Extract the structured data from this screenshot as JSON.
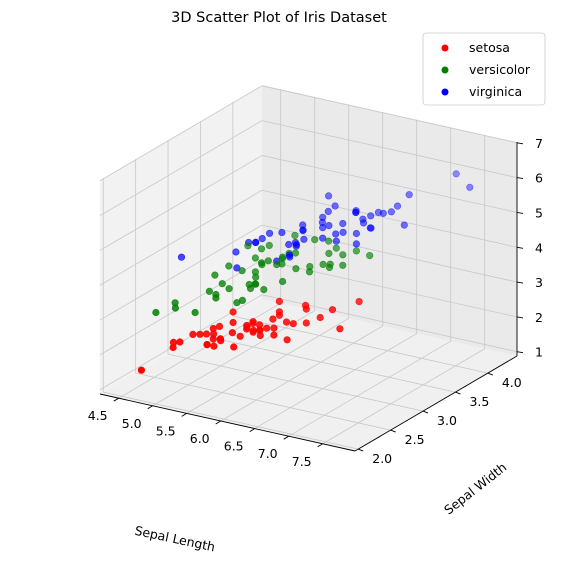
{
  "chart_data": {
    "type": "scatter3d",
    "title": "3D Scatter Plot of Iris Dataset",
    "xlabel": "Sepal Length",
    "ylabel": "Sepal Width",
    "zlabel": "",
    "xlim": [
      4.3,
      7.9
    ],
    "ylim": [
      2.0,
      4.4
    ],
    "zlim": [
      1.0,
      6.9
    ],
    "x_ticks": [
      "4.5",
      "5.0",
      "5.5",
      "6.0",
      "6.5",
      "7.0",
      "7.5",
      "8.0"
    ],
    "y_ticks": [
      "2.0",
      "2.5",
      "3.0",
      "3.5",
      "4.0",
      "4.5"
    ],
    "z_ticks": [
      "1",
      "2",
      "3",
      "4",
      "5",
      "6",
      "7"
    ],
    "grid": true,
    "legend": "top-right",
    "series": [
      {
        "name": "setosa",
        "color": "#ff0000",
        "points": [
          [
            5.1,
            3.5,
            1.4
          ],
          [
            4.9,
            3.0,
            1.4
          ],
          [
            4.7,
            3.2,
            1.3
          ],
          [
            4.6,
            3.1,
            1.5
          ],
          [
            5.0,
            3.6,
            1.4
          ],
          [
            5.4,
            3.9,
            1.7
          ],
          [
            4.6,
            3.4,
            1.4
          ],
          [
            5.0,
            3.4,
            1.5
          ],
          [
            4.4,
            2.9,
            1.4
          ],
          [
            4.9,
            3.1,
            1.5
          ],
          [
            5.4,
            3.7,
            1.5
          ],
          [
            4.8,
            3.4,
            1.6
          ],
          [
            4.8,
            3.0,
            1.4
          ],
          [
            4.3,
            3.0,
            1.1
          ],
          [
            5.8,
            4.0,
            1.2
          ],
          [
            5.7,
            4.4,
            1.5
          ],
          [
            5.4,
            3.9,
            1.3
          ],
          [
            5.1,
            3.5,
            1.4
          ],
          [
            5.7,
            3.8,
            1.7
          ],
          [
            5.1,
            3.8,
            1.5
          ],
          [
            5.4,
            3.4,
            1.7
          ],
          [
            5.1,
            3.7,
            1.5
          ],
          [
            4.6,
            3.6,
            1.0
          ],
          [
            5.1,
            3.3,
            1.7
          ],
          [
            4.8,
            3.4,
            1.9
          ],
          [
            5.0,
            3.0,
            1.6
          ],
          [
            5.0,
            3.4,
            1.6
          ],
          [
            5.2,
            3.5,
            1.5
          ],
          [
            5.2,
            3.4,
            1.4
          ],
          [
            4.7,
            3.2,
            1.6
          ],
          [
            4.8,
            3.1,
            1.6
          ],
          [
            5.4,
            3.4,
            1.5
          ],
          [
            5.2,
            4.1,
            1.5
          ],
          [
            5.5,
            4.2,
            1.4
          ],
          [
            4.9,
            3.1,
            1.5
          ],
          [
            5.0,
            3.2,
            1.2
          ],
          [
            5.5,
            3.5,
            1.3
          ],
          [
            4.9,
            3.6,
            1.4
          ],
          [
            4.4,
            3.0,
            1.3
          ],
          [
            5.1,
            3.4,
            1.5
          ],
          [
            5.0,
            3.5,
            1.3
          ],
          [
            4.5,
            2.3,
            1.3
          ],
          [
            4.4,
            3.2,
            1.3
          ],
          [
            5.0,
            3.5,
            1.6
          ],
          [
            5.1,
            3.8,
            1.9
          ],
          [
            4.8,
            3.0,
            1.4
          ],
          [
            5.1,
            3.8,
            1.6
          ],
          [
            4.6,
            3.2,
            1.4
          ],
          [
            5.3,
            3.7,
            1.5
          ],
          [
            5.0,
            3.3,
            1.4
          ]
        ]
      },
      {
        "name": "versicolor",
        "color": "#008000",
        "points": [
          [
            7.0,
            3.2,
            4.7
          ],
          [
            6.4,
            3.2,
            4.5
          ],
          [
            6.9,
            3.1,
            4.9
          ],
          [
            5.5,
            2.3,
            4.0
          ],
          [
            6.5,
            2.8,
            4.6
          ],
          [
            5.7,
            2.8,
            4.5
          ],
          [
            6.3,
            3.3,
            4.7
          ],
          [
            4.9,
            2.4,
            3.3
          ],
          [
            6.6,
            2.9,
            4.6
          ],
          [
            5.2,
            2.7,
            3.9
          ],
          [
            5.0,
            2.0,
            3.5
          ],
          [
            5.9,
            3.0,
            4.2
          ],
          [
            6.0,
            2.2,
            4.0
          ],
          [
            6.1,
            2.9,
            4.7
          ],
          [
            5.6,
            2.9,
            3.6
          ],
          [
            6.7,
            3.1,
            4.4
          ],
          [
            5.6,
            3.0,
            4.5
          ],
          [
            5.8,
            2.7,
            4.1
          ],
          [
            6.2,
            2.2,
            4.5
          ],
          [
            5.6,
            2.5,
            3.9
          ],
          [
            5.9,
            3.2,
            4.8
          ],
          [
            6.1,
            2.8,
            4.0
          ],
          [
            6.3,
            2.5,
            4.9
          ],
          [
            6.1,
            2.8,
            4.7
          ],
          [
            6.4,
            2.9,
            4.3
          ],
          [
            6.6,
            3.0,
            4.4
          ],
          [
            6.8,
            2.8,
            4.8
          ],
          [
            6.7,
            3.0,
            5.0
          ],
          [
            6.0,
            2.9,
            4.5
          ],
          [
            5.7,
            2.6,
            3.5
          ],
          [
            5.5,
            2.4,
            3.8
          ],
          [
            5.5,
            2.4,
            3.7
          ],
          [
            5.8,
            2.7,
            3.9
          ],
          [
            6.0,
            2.7,
            5.1
          ],
          [
            5.4,
            3.0,
            4.5
          ],
          [
            6.0,
            3.4,
            4.5
          ],
          [
            6.7,
            3.1,
            4.7
          ],
          [
            6.3,
            2.3,
            4.4
          ],
          [
            5.6,
            3.0,
            4.1
          ],
          [
            5.5,
            2.5,
            4.0
          ],
          [
            5.5,
            2.6,
            4.4
          ],
          [
            6.1,
            3.0,
            4.6
          ],
          [
            5.8,
            2.6,
            4.0
          ],
          [
            5.0,
            2.3,
            3.3
          ],
          [
            5.6,
            2.7,
            4.2
          ],
          [
            5.7,
            3.0,
            4.2
          ],
          [
            5.7,
            2.9,
            4.2
          ],
          [
            6.2,
            2.9,
            4.3
          ],
          [
            5.1,
            2.5,
            3.0
          ],
          [
            5.7,
            2.8,
            4.1
          ]
        ]
      },
      {
        "name": "virginica",
        "color": "#0000ff",
        "points": [
          [
            6.3,
            3.3,
            6.0
          ],
          [
            5.8,
            2.7,
            5.1
          ],
          [
            7.1,
            3.0,
            5.9
          ],
          [
            6.3,
            2.9,
            5.6
          ],
          [
            6.5,
            3.0,
            5.8
          ],
          [
            7.6,
            3.0,
            6.6
          ],
          [
            4.9,
            2.5,
            4.5
          ],
          [
            7.3,
            2.9,
            6.3
          ],
          [
            6.7,
            2.5,
            5.8
          ],
          [
            7.2,
            3.6,
            6.1
          ],
          [
            6.5,
            3.2,
            5.1
          ],
          [
            6.4,
            2.7,
            5.3
          ],
          [
            6.8,
            3.0,
            5.5
          ],
          [
            5.7,
            2.5,
            5.0
          ],
          [
            5.8,
            2.8,
            5.1
          ],
          [
            6.4,
            3.2,
            5.3
          ],
          [
            6.5,
            3.0,
            5.5
          ],
          [
            7.7,
            3.8,
            6.7
          ],
          [
            7.7,
            2.6,
            6.9
          ],
          [
            6.0,
            2.2,
            5.0
          ],
          [
            6.9,
            3.2,
            5.7
          ],
          [
            5.6,
            2.8,
            4.9
          ],
          [
            7.7,
            2.8,
            6.7
          ],
          [
            6.3,
            2.7,
            4.9
          ],
          [
            6.7,
            3.3,
            5.7
          ],
          [
            7.2,
            3.2,
            6.0
          ],
          [
            6.2,
            2.8,
            4.8
          ],
          [
            6.1,
            3.0,
            4.9
          ],
          [
            6.4,
            2.8,
            5.6
          ],
          [
            7.2,
            3.0,
            5.8
          ],
          [
            7.4,
            2.8,
            6.1
          ],
          [
            7.9,
            3.8,
            6.4
          ],
          [
            6.4,
            2.8,
            5.6
          ],
          [
            6.3,
            2.8,
            5.1
          ],
          [
            6.1,
            2.6,
            5.6
          ],
          [
            7.7,
            3.0,
            6.1
          ],
          [
            6.3,
            3.4,
            5.6
          ],
          [
            6.4,
            3.1,
            5.5
          ],
          [
            6.0,
            3.0,
            4.8
          ],
          [
            6.9,
            3.1,
            5.4
          ],
          [
            6.7,
            3.1,
            5.6
          ],
          [
            6.9,
            3.1,
            5.1
          ],
          [
            5.8,
            2.7,
            5.1
          ],
          [
            6.8,
            3.2,
            5.9
          ],
          [
            6.7,
            3.3,
            5.7
          ],
          [
            6.7,
            3.0,
            5.2
          ],
          [
            6.3,
            2.5,
            5.0
          ],
          [
            6.5,
            3.0,
            5.2
          ],
          [
            6.2,
            3.4,
            5.4
          ],
          [
            5.9,
            3.0,
            5.1
          ]
        ]
      }
    ]
  }
}
